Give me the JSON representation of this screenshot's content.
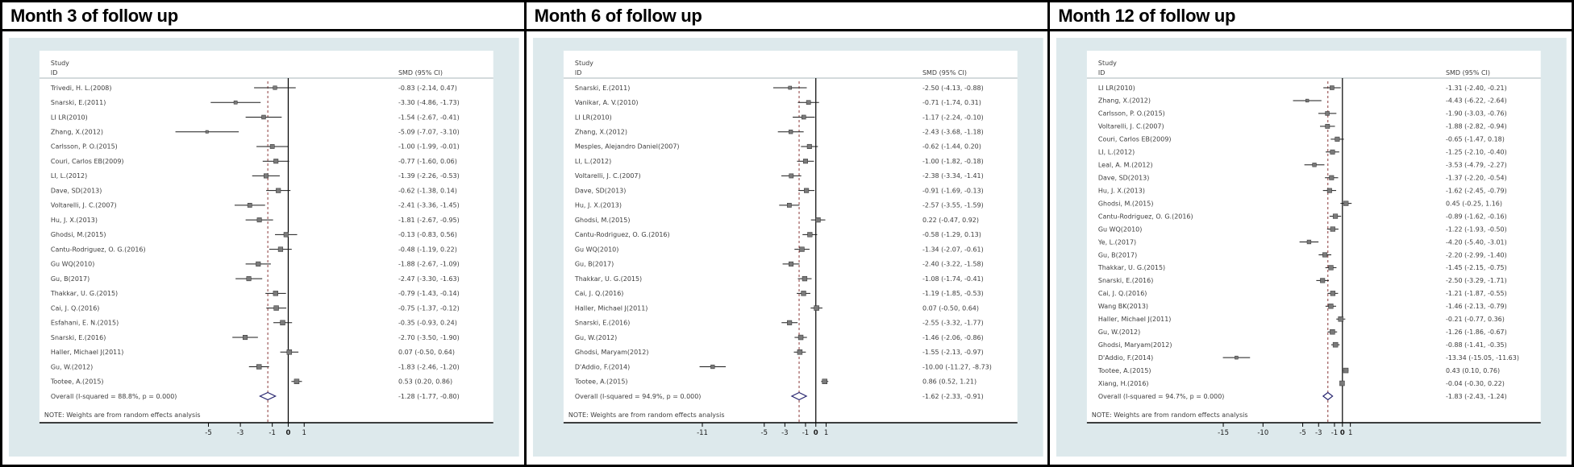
{
  "chart_data": {
    "type": "forest",
    "colors": {
      "panel_bg": "#dde9ec",
      "card_bg": "#ffffff",
      "text": "#3d3d3d",
      "axis": "#000000",
      "rule": "#a8b4b8",
      "ci_line": "#1a1a1a",
      "marker_fill": "#7a7a7a",
      "marker_stroke": "#2e2e2e",
      "diamond_stroke": "#26246e",
      "dashed_line": "#8b3a3a"
    },
    "panels": [
      {
        "title": "Month 3 of follow up",
        "col_study": "Study",
        "col_id": "ID",
        "col_smd": "SMD (95% CI)",
        "note": "NOTE: Weights are from random effects analysis",
        "axis_ticks": [
          -5,
          -3,
          -1,
          0,
          1
        ],
        "null_line": 0,
        "studies": [
          {
            "id": "Trivedi, H. L.(2008)",
            "smd": -0.83,
            "lo": -2.14,
            "hi": 0.47,
            "text": "-0.83 (-2.14, 0.47)"
          },
          {
            "id": "Snarski, E.(2011)",
            "smd": -3.3,
            "lo": -4.86,
            "hi": -1.73,
            "text": "-3.30 (-4.86, -1.73)"
          },
          {
            "id": "LI LR(2010)",
            "smd": -1.54,
            "lo": -2.67,
            "hi": -0.41,
            "text": "-1.54 (-2.67, -0.41)"
          },
          {
            "id": "Zhang, X.(2012)",
            "smd": -5.09,
            "lo": -7.07,
            "hi": -3.1,
            "text": "-5.09 (-7.07, -3.10)"
          },
          {
            "id": "Carlsson, P. O.(2015)",
            "smd": -1.0,
            "lo": -1.99,
            "hi": -0.01,
            "text": "-1.00 (-1.99, -0.01)"
          },
          {
            "id": "Couri, Carlos EB(2009)",
            "smd": -0.77,
            "lo": -1.6,
            "hi": 0.06,
            "text": "-0.77 (-1.60, 0.06)"
          },
          {
            "id": "LI, L.(2012)",
            "smd": -1.39,
            "lo": -2.26,
            "hi": -0.53,
            "text": "-1.39 (-2.26, -0.53)"
          },
          {
            "id": "Dave, SD(2013)",
            "smd": -0.62,
            "lo": -1.38,
            "hi": 0.14,
            "text": "-0.62 (-1.38, 0.14)"
          },
          {
            "id": "Voltarelli, J. C.(2007)",
            "smd": -2.41,
            "lo": -3.36,
            "hi": -1.45,
            "text": "-2.41 (-3.36, -1.45)"
          },
          {
            "id": "Hu, J. X.(2013)",
            "smd": -1.81,
            "lo": -2.67,
            "hi": -0.95,
            "text": "-1.81 (-2.67, -0.95)"
          },
          {
            "id": "Ghodsi, M.(2015)",
            "smd": -0.13,
            "lo": -0.83,
            "hi": 0.56,
            "text": "-0.13 (-0.83, 0.56)"
          },
          {
            "id": "Cantu-Rodriguez, O. G.(2016)",
            "smd": -0.48,
            "lo": -1.19,
            "hi": 0.22,
            "text": "-0.48 (-1.19, 0.22)"
          },
          {
            "id": "Gu WQ(2010)",
            "smd": -1.88,
            "lo": -2.67,
            "hi": -1.09,
            "text": "-1.88 (-2.67, -1.09)"
          },
          {
            "id": "Gu, B(2017)",
            "smd": -2.47,
            "lo": -3.3,
            "hi": -1.63,
            "text": "-2.47 (-3.30, -1.63)"
          },
          {
            "id": "Thakkar, U. G.(2015)",
            "smd": -0.79,
            "lo": -1.43,
            "hi": -0.14,
            "text": "-0.79 (-1.43, -0.14)"
          },
          {
            "id": "Cai, J. Q.(2016)",
            "smd": -0.75,
            "lo": -1.37,
            "hi": -0.12,
            "text": "-0.75 (-1.37, -0.12)"
          },
          {
            "id": "Esfahani, E. N.(2015)",
            "smd": -0.35,
            "lo": -0.93,
            "hi": 0.24,
            "text": "-0.35 (-0.93, 0.24)"
          },
          {
            "id": "Snarski, E.(2016)",
            "smd": -2.7,
            "lo": -3.5,
            "hi": -1.9,
            "text": "-2.70 (-3.50, -1.90)"
          },
          {
            "id": "Haller, Michael J(2011)",
            "smd": 0.07,
            "lo": -0.5,
            "hi": 0.64,
            "text": "0.07 (-0.50, 0.64)"
          },
          {
            "id": "Gu, W.(2012)",
            "smd": -1.83,
            "lo": -2.46,
            "hi": -1.2,
            "text": "-1.83 (-2.46, -1.20)"
          },
          {
            "id": "Tootee, A.(2015)",
            "smd": 0.53,
            "lo": 0.2,
            "hi": 0.86,
            "text": "0.53 (0.20, 0.86)"
          }
        ],
        "overall": {
          "id": "Overall  (I-squared = 88.8%, p = 0.000)",
          "smd": -1.28,
          "lo": -1.77,
          "hi": -0.8,
          "text": "-1.28 (-1.77, -0.80)"
        }
      },
      {
        "title": "Month 6 of follow up",
        "col_study": "Study",
        "col_id": "ID",
        "col_smd": "SMD (95% CI)",
        "note": "NOTE: Weights are from random effects analysis",
        "axis_ticks": [
          -11,
          -5,
          -3,
          -1,
          0,
          1
        ],
        "null_line": 0,
        "studies": [
          {
            "id": "Snarski, E.(2011)",
            "smd": -2.5,
            "lo": -4.13,
            "hi": -0.88,
            "text": "-2.50 (-4.13, -0.88)"
          },
          {
            "id": "Vanikar, A. V.(2010)",
            "smd": -0.71,
            "lo": -1.74,
            "hi": 0.31,
            "text": "-0.71 (-1.74, 0.31)"
          },
          {
            "id": "LI LR(2010)",
            "smd": -1.17,
            "lo": -2.24,
            "hi": -0.1,
            "text": "-1.17 (-2.24, -0.10)"
          },
          {
            "id": "Zhang, X.(2012)",
            "smd": -2.43,
            "lo": -3.68,
            "hi": -1.18,
            "text": "-2.43 (-3.68, -1.18)"
          },
          {
            "id": "Mesples, Alejandro Daniel(2007)",
            "smd": -0.62,
            "lo": -1.44,
            "hi": 0.2,
            "text": "-0.62 (-1.44, 0.20)"
          },
          {
            "id": "LI, L.(2012)",
            "smd": -1.0,
            "lo": -1.82,
            "hi": -0.18,
            "text": "-1.00 (-1.82, -0.18)"
          },
          {
            "id": "Voltarelli, J. C.(2007)",
            "smd": -2.38,
            "lo": -3.34,
            "hi": -1.41,
            "text": "-2.38 (-3.34, -1.41)"
          },
          {
            "id": "Dave, SD(2013)",
            "smd": -0.91,
            "lo": -1.69,
            "hi": -0.13,
            "text": "-0.91 (-1.69, -0.13)"
          },
          {
            "id": "Hu, J. X.(2013)",
            "smd": -2.57,
            "lo": -3.55,
            "hi": -1.59,
            "text": "-2.57 (-3.55, -1.59)"
          },
          {
            "id": "Ghodsi, M.(2015)",
            "smd": 0.22,
            "lo": -0.47,
            "hi": 0.92,
            "text": "0.22 (-0.47, 0.92)"
          },
          {
            "id": "Cantu-Rodriguez, O. G.(2016)",
            "smd": -0.58,
            "lo": -1.29,
            "hi": 0.13,
            "text": "-0.58 (-1.29, 0.13)"
          },
          {
            "id": "Gu WQ(2010)",
            "smd": -1.34,
            "lo": -2.07,
            "hi": -0.61,
            "text": "-1.34 (-2.07, -0.61)"
          },
          {
            "id": "Gu, B(2017)",
            "smd": -2.4,
            "lo": -3.22,
            "hi": -1.58,
            "text": "-2.40 (-3.22, -1.58)"
          },
          {
            "id": "Thakkar, U. G.(2015)",
            "smd": -1.08,
            "lo": -1.74,
            "hi": -0.41,
            "text": "-1.08 (-1.74, -0.41)"
          },
          {
            "id": "Cai, J. Q.(2016)",
            "smd": -1.19,
            "lo": -1.85,
            "hi": -0.53,
            "text": "-1.19 (-1.85, -0.53)"
          },
          {
            "id": "Haller, Michael J(2011)",
            "smd": 0.07,
            "lo": -0.5,
            "hi": 0.64,
            "text": "0.07 (-0.50, 0.64)"
          },
          {
            "id": "Snarski, E.(2016)",
            "smd": -2.55,
            "lo": -3.32,
            "hi": -1.77,
            "text": "-2.55 (-3.32, -1.77)"
          },
          {
            "id": "Gu, W.(2012)",
            "smd": -1.46,
            "lo": -2.06,
            "hi": -0.86,
            "text": "-1.46 (-2.06, -0.86)"
          },
          {
            "id": "Ghodsi, Maryam(2012)",
            "smd": -1.55,
            "lo": -2.13,
            "hi": -0.97,
            "text": "-1.55 (-2.13, -0.97)"
          },
          {
            "id": "D'Addio, F.(2014)",
            "smd": -10.0,
            "lo": -11.27,
            "hi": -8.73,
            "text": "-10.00 (-11.27, -8.73)"
          },
          {
            "id": "Tootee, A.(2015)",
            "smd": 0.86,
            "lo": 0.52,
            "hi": 1.21,
            "text": "0.86 (0.52, 1.21)"
          }
        ],
        "overall": {
          "id": "Overall  (I-squared = 94.9%, p = 0.000)",
          "smd": -1.62,
          "lo": -2.33,
          "hi": -0.91,
          "text": "-1.62 (-2.33, -0.91)"
        }
      },
      {
        "title": "Month 12 of follow up",
        "col_study": "Study",
        "col_id": "ID",
        "col_smd": "SMD (95% CI)",
        "note": "NOTE: Weights are from random effects analysis",
        "axis_ticks": [
          -15,
          -10,
          -5,
          -3,
          -1,
          0,
          1
        ],
        "null_line": 0,
        "studies": [
          {
            "id": "LI LR(2010)",
            "smd": -1.31,
            "lo": -2.4,
            "hi": -0.21,
            "text": "-1.31 (-2.40, -0.21)"
          },
          {
            "id": "Zhang, X.(2012)",
            "smd": -4.43,
            "lo": -6.22,
            "hi": -2.64,
            "text": "-4.43 (-6.22, -2.64)"
          },
          {
            "id": "Carlsson, P. O.(2015)",
            "smd": -1.9,
            "lo": -3.03,
            "hi": -0.76,
            "text": "-1.90 (-3.03, -0.76)"
          },
          {
            "id": "Voltarelli, J. C.(2007)",
            "smd": -1.88,
            "lo": -2.82,
            "hi": -0.94,
            "text": "-1.88 (-2.82, -0.94)"
          },
          {
            "id": "Couri, Carlos EB(2009)",
            "smd": -0.65,
            "lo": -1.47,
            "hi": 0.18,
            "text": "-0.65 (-1.47, 0.18)"
          },
          {
            "id": "LI, L.(2012)",
            "smd": -1.25,
            "lo": -2.1,
            "hi": -0.4,
            "text": "-1.25 (-2.10, -0.40)"
          },
          {
            "id": "Leal, A. M.(2012)",
            "smd": -3.53,
            "lo": -4.79,
            "hi": -2.27,
            "text": "-3.53 (-4.79, -2.27)"
          },
          {
            "id": "Dave, SD(2013)",
            "smd": -1.37,
            "lo": -2.2,
            "hi": -0.54,
            "text": "-1.37 (-2.20, -0.54)"
          },
          {
            "id": "Hu, J. X.(2013)",
            "smd": -1.62,
            "lo": -2.45,
            "hi": -0.79,
            "text": "-1.62 (-2.45, -0.79)"
          },
          {
            "id": "Ghodsi, M.(2015)",
            "smd": 0.45,
            "lo": -0.25,
            "hi": 1.16,
            "text": "0.45 (-0.25, 1.16)"
          },
          {
            "id": "Cantu-Rodriguez, O. G.(2016)",
            "smd": -0.89,
            "lo": -1.62,
            "hi": -0.16,
            "text": "-0.89 (-1.62, -0.16)"
          },
          {
            "id": "Gu WQ(2010)",
            "smd": -1.22,
            "lo": -1.93,
            "hi": -0.5,
            "text": "-1.22 (-1.93, -0.50)"
          },
          {
            "id": "Ye, L.(2017)",
            "smd": -4.2,
            "lo": -5.4,
            "hi": -3.01,
            "text": "-4.20 (-5.40, -3.01)"
          },
          {
            "id": "Gu, B(2017)",
            "smd": -2.2,
            "lo": -2.99,
            "hi": -1.4,
            "text": "-2.20 (-2.99, -1.40)"
          },
          {
            "id": "Thakkar, U. G.(2015)",
            "smd": -1.45,
            "lo": -2.15,
            "hi": -0.75,
            "text": "-1.45 (-2.15, -0.75)"
          },
          {
            "id": "Snarski, E.(2016)",
            "smd": -2.5,
            "lo": -3.29,
            "hi": -1.71,
            "text": "-2.50 (-3.29, -1.71)"
          },
          {
            "id": "Cai, J. Q.(2016)",
            "smd": -1.21,
            "lo": -1.87,
            "hi": -0.55,
            "text": "-1.21 (-1.87, -0.55)"
          },
          {
            "id": "Wang BK(2013)",
            "smd": -1.46,
            "lo": -2.13,
            "hi": -0.79,
            "text": "-1.46 (-2.13, -0.79)"
          },
          {
            "id": "Haller, Michael J(2011)",
            "smd": -0.21,
            "lo": -0.77,
            "hi": 0.36,
            "text": "-0.21 (-0.77, 0.36)"
          },
          {
            "id": "Gu, W.(2012)",
            "smd": -1.26,
            "lo": -1.86,
            "hi": -0.67,
            "text": "-1.26 (-1.86, -0.67)"
          },
          {
            "id": "Ghodsi, Maryam(2012)",
            "smd": -0.88,
            "lo": -1.41,
            "hi": -0.35,
            "text": "-0.88 (-1.41, -0.35)"
          },
          {
            "id": "D'Addio, F.(2014)",
            "smd": -13.34,
            "lo": -15.05,
            "hi": -11.63,
            "text": "-13.34 (-15.05, -11.63)"
          },
          {
            "id": "Tootee, A.(2015)",
            "smd": 0.43,
            "lo": 0.1,
            "hi": 0.76,
            "text": "0.43 (0.10, 0.76)"
          },
          {
            "id": "Xiang, H.(2016)",
            "smd": -0.04,
            "lo": -0.3,
            "hi": 0.22,
            "text": "-0.04 (-0.30, 0.22)"
          }
        ],
        "overall": {
          "id": "Overall  (I-squared = 94.7%, p = 0.000)",
          "smd": -1.83,
          "lo": -2.43,
          "hi": -1.24,
          "text": "-1.83 (-2.43, -1.24)"
        }
      }
    ]
  }
}
